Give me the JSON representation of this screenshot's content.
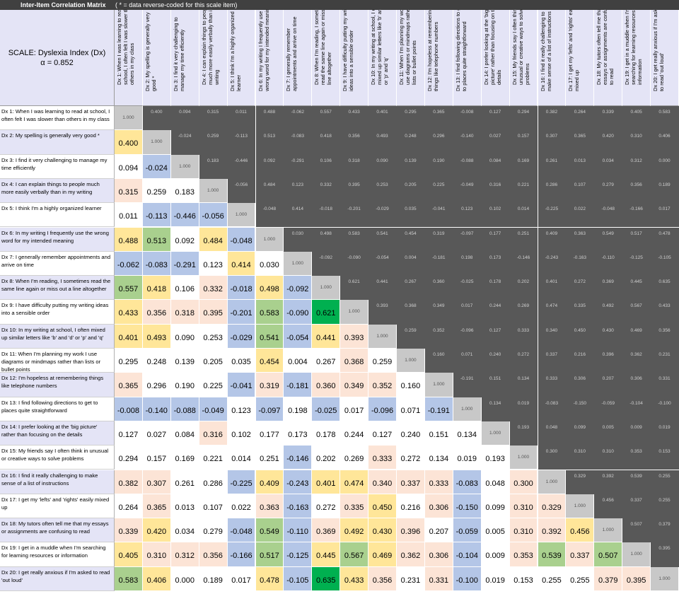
{
  "title": "Inter-Item Correlation Matrix",
  "subtitle": "( * = data reverse-coded for this scale item)",
  "scale": {
    "name": "SCALE: Dyslexia Index (Dx)",
    "alpha": "α = 0.852"
  },
  "colors": {
    "negative": "#b4c6e7",
    "weak": "#ffffff",
    "low": "#fce4d6",
    "moderate": "#ffe699",
    "strong": "#a9d08e",
    "very_strong": "#00b050",
    "upper": "#585858",
    "diagonal": "#c8c8c8",
    "header": "#e4e4f6",
    "titlebar": "#404040"
  },
  "chart_data": {
    "type": "heatmap",
    "diagonal_value": "1.000",
    "items": [
      "Dx 1: When I was learning to read at school, I often felt I was slower than others in my class",
      "Dx 2: My spelling is generally very good *",
      "Dx 3: I find it very challenging to manage my time efficiently",
      "Dx 4: I can explain things to people much more easily verbally than in my writing",
      "Dx 5: I think I'm a highly organized learner",
      "Dx 6: In my writing I frequently use the wrong word for my intended meaning",
      "Dx 7: I generally remember appointments and arrive on time",
      "Dx 8: When I'm reading, I sometimes read the same line again or miss out a line altogether",
      "Dx 9: I have difficulty putting my writing ideas into a sensible order",
      "Dx 10: In my writing at school, I often mixed up similar letters like 'b' and 'd' or 'p' and 'q'",
      "Dx 11: When I'm planning my work I use diagrams or mindmaps rather than lists or bullet points",
      "Dx 12: I'm hopeless at remembering things like telephone numbers",
      "Dx 13: I find following directions to get to places quite straightforward",
      "Dx 14: I prefer looking at the 'big picture' rather than focusing on the details",
      "Dx 15: My friends say I often think in unusual or creative ways to solve problems",
      "Dx 16: I find it really challenging to make sense of a list of instructions",
      "Dx 17: I get my 'lefts' and 'rights' easily mixed up",
      "Dx 18: My tutors often tell me that my essays or assignments are confusing to read",
      "Dx 19: I get in a muddle when I'm searching for learning resources or information",
      "Dx 20: I get really anxious if I'm asked to read 'out loud'"
    ],
    "matrix": [
      [
        "1.000",
        "0.400",
        "0.094",
        "0.315",
        "0.011",
        "0.488",
        "-0.062",
        "0.557",
        "0.433",
        "0.401",
        "0.295",
        "0.365",
        "-0.008",
        "0.127",
        "0.294",
        "0.382",
        "0.264",
        "0.339",
        "0.405",
        "0.583"
      ],
      [
        "0.400",
        "1.000",
        "-0.024",
        "0.259",
        "-0.113",
        "0.513",
        "-0.083",
        "0.418",
        "0.356",
        "0.493",
        "0.248",
        "0.296",
        "-0.140",
        "0.027",
        "0.157",
        "0.307",
        "0.365",
        "0.420",
        "0.310",
        "0.406"
      ],
      [
        "0.094",
        "-0.024",
        "1.000",
        "0.183",
        "-0.446",
        "0.092",
        "-0.291",
        "0.106",
        "0.318",
        "0.090",
        "0.139",
        "0.190",
        "-0.088",
        "0.084",
        "0.169",
        "0.261",
        "0.013",
        "0.034",
        "0.312",
        "0.000"
      ],
      [
        "0.315",
        "0.259",
        "0.183",
        "1.000",
        "-0.056",
        "0.484",
        "0.123",
        "0.332",
        "0.395",
        "0.253",
        "0.205",
        "0.225",
        "-0.049",
        "0.316",
        "0.221",
        "0.286",
        "0.107",
        "0.279",
        "0.356",
        "0.189"
      ],
      [
        "0.011",
        "-0.113",
        "-0.446",
        "-0.056",
        "1.000",
        "-0.048",
        "0.414",
        "-0.018",
        "-0.201",
        "-0.029",
        "0.035",
        "-0.041",
        "0.123",
        "0.102",
        "0.014",
        "-0.225",
        "0.022",
        "-0.048",
        "-0.166",
        "0.017"
      ],
      [
        "0.488",
        "0.513",
        "0.092",
        "0.484",
        "-0.048",
        "1.000",
        "0.030",
        "0.498",
        "0.583",
        "0.541",
        "0.454",
        "0.319",
        "-0.097",
        "0.177",
        "0.251",
        "0.409",
        "0.363",
        "0.549",
        "0.517",
        "0.478"
      ],
      [
        "-0.062",
        "-0.083",
        "-0.291",
        "0.123",
        "0.414",
        "0.030",
        "1.000",
        "-0.092",
        "-0.090",
        "-0.054",
        "0.004",
        "-0.181",
        "0.198",
        "0.173",
        "-0.146",
        "-0.243",
        "-0.163",
        "-0.110",
        "-0.125",
        "-0.105"
      ],
      [
        "0.557",
        "0.418",
        "0.106",
        "0.332",
        "-0.018",
        "0.498",
        "-0.092",
        "1.000",
        "0.621",
        "0.441",
        "0.267",
        "0.360",
        "-0.025",
        "0.178",
        "0.202",
        "0.401",
        "0.272",
        "0.369",
        "0.445",
        "0.635"
      ],
      [
        "0.433",
        "0.356",
        "0.318",
        "0.395",
        "-0.201",
        "0.583",
        "-0.090",
        "0.621",
        "1.000",
        "0.393",
        "0.368",
        "0.349",
        "0.017",
        "0.244",
        "0.269",
        "0.474",
        "0.335",
        "0.492",
        "0.567",
        "0.433"
      ],
      [
        "0.401",
        "0.493",
        "0.090",
        "0.253",
        "-0.029",
        "0.541",
        "-0.054",
        "0.441",
        "0.393",
        "1.000",
        "0.259",
        "0.352",
        "-0.096",
        "0.127",
        "0.333",
        "0.340",
        "0.450",
        "0.430",
        "0.469",
        "0.356"
      ],
      [
        "0.295",
        "0.248",
        "0.139",
        "0.205",
        "0.035",
        "0.454",
        "0.004",
        "0.267",
        "0.368",
        "0.259",
        "1.000",
        "0.160",
        "0.071",
        "0.240",
        "0.272",
        "0.337",
        "0.216",
        "0.396",
        "0.362",
        "0.231"
      ],
      [
        "0.365",
        "0.296",
        "0.190",
        "0.225",
        "-0.041",
        "0.319",
        "-0.181",
        "0.360",
        "0.349",
        "0.352",
        "0.160",
        "1.000",
        "-0.191",
        "0.151",
        "0.134",
        "0.333",
        "0.306",
        "0.207",
        "0.306",
        "0.331"
      ],
      [
        "-0.008",
        "-0.140",
        "-0.088",
        "-0.049",
        "0.123",
        "-0.097",
        "0.198",
        "-0.025",
        "0.017",
        "-0.096",
        "0.071",
        "-0.191",
        "1.000",
        "0.134",
        "0.019",
        "-0.083",
        "-0.150",
        "-0.059",
        "-0.104",
        "-0.100"
      ],
      [
        "0.127",
        "0.027",
        "0.084",
        "0.316",
        "0.102",
        "0.177",
        "0.173",
        "0.178",
        "0.244",
        "0.127",
        "0.240",
        "0.151",
        "0.134",
        "1.000",
        "0.193",
        "0.048",
        "0.099",
        "0.005",
        "0.009",
        "0.019"
      ],
      [
        "0.294",
        "0.157",
        "0.169",
        "0.221",
        "0.014",
        "0.251",
        "-0.146",
        "0.202",
        "0.269",
        "0.333",
        "0.272",
        "0.134",
        "0.019",
        "0.193",
        "1.000",
        "0.300",
        "0.310",
        "0.310",
        "0.353",
        "0.153"
      ],
      [
        "0.382",
        "0.307",
        "0.261",
        "0.286",
        "-0.225",
        "0.409",
        "-0.243",
        "0.401",
        "0.474",
        "0.340",
        "0.337",
        "0.333",
        "-0.083",
        "0.048",
        "0.300",
        "1.000",
        "0.329",
        "0.392",
        "0.539",
        "0.255"
      ],
      [
        "0.264",
        "0.365",
        "0.013",
        "0.107",
        "0.022",
        "0.363",
        "-0.163",
        "0.272",
        "0.335",
        "0.450",
        "0.216",
        "0.306",
        "-0.150",
        "0.099",
        "0.310",
        "0.329",
        "1.000",
        "0.456",
        "0.337",
        "0.255"
      ],
      [
        "0.339",
        "0.420",
        "0.034",
        "0.279",
        "-0.048",
        "0.549",
        "-0.110",
        "0.369",
        "0.492",
        "0.430",
        "0.396",
        "0.207",
        "-0.059",
        "0.005",
        "0.310",
        "0.392",
        "0.456",
        "1.000",
        "0.507",
        "0.379"
      ],
      [
        "0.405",
        "0.310",
        "0.312",
        "0.356",
        "-0.166",
        "0.517",
        "-0.125",
        "0.445",
        "0.567",
        "0.469",
        "0.362",
        "0.306",
        "-0.104",
        "0.009",
        "0.353",
        "0.539",
        "0.337",
        "0.507",
        "1.000",
        "0.395"
      ],
      [
        "0.583",
        "0.406",
        "0.000",
        "0.189",
        "0.017",
        "0.478",
        "-0.105",
        "0.635",
        "0.433",
        "0.356",
        "0.231",
        "0.331",
        "-0.100",
        "0.019",
        "0.153",
        "0.255",
        "0.255",
        "0.379",
        "0.395",
        "1.000"
      ]
    ]
  }
}
